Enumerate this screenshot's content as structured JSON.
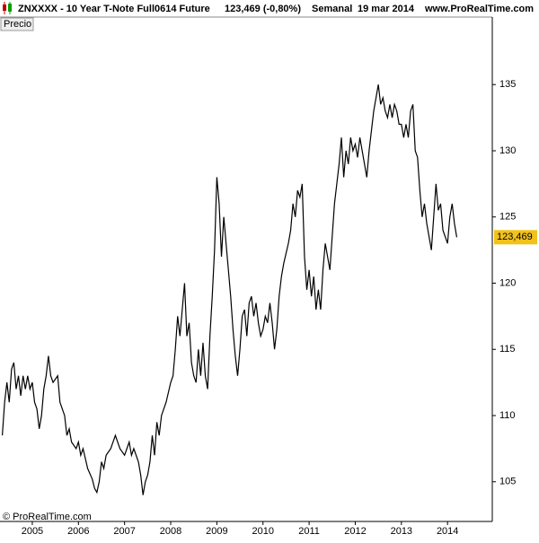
{
  "chart_data": {
    "type": "line",
    "title": "ZNXXXX - 10 Year T-Note Full0614 Future",
    "quote": "123,469 (-0,80%)",
    "period": "Semanal",
    "date": "19 mar 2014",
    "source": "www.ProRealTime.com",
    "panel_label": "Precio",
    "footer": "© ProRealTime.com",
    "x": [
      2004.35,
      2004.4,
      2004.45,
      2004.5,
      2004.55,
      2004.6,
      2004.65,
      2004.7,
      2004.75,
      2004.8,
      2004.85,
      2004.9,
      2004.95,
      2005.0,
      2005.05,
      2005.1,
      2005.15,
      2005.2,
      2005.25,
      2005.3,
      2005.35,
      2005.4,
      2005.45,
      2005.55,
      2005.6,
      2005.7,
      2005.75,
      2005.8,
      2005.85,
      2005.95,
      2006.0,
      2006.05,
      2006.1,
      2006.2,
      2006.3,
      2006.35,
      2006.4,
      2006.45,
      2006.5,
      2006.55,
      2006.6,
      2006.7,
      2006.8,
      2006.9,
      2007.0,
      2007.05,
      2007.1,
      2007.15,
      2007.2,
      2007.3,
      2007.35,
      2007.4,
      2007.45,
      2007.5,
      2007.55,
      2007.6,
      2007.65,
      2007.7,
      2007.75,
      2007.8,
      2007.9,
      2008.0,
      2008.05,
      2008.1,
      2008.15,
      2008.2,
      2008.25,
      2008.3,
      2008.35,
      2008.4,
      2008.45,
      2008.5,
      2008.55,
      2008.6,
      2008.65,
      2008.7,
      2008.75,
      2008.8,
      2008.85,
      2008.9,
      2008.95,
      2009.0,
      2009.05,
      2009.1,
      2009.15,
      2009.2,
      2009.25,
      2009.3,
      2009.35,
      2009.4,
      2009.45,
      2009.5,
      2009.55,
      2009.6,
      2009.65,
      2009.7,
      2009.75,
      2009.8,
      2009.85,
      2009.9,
      2009.95,
      2010.0,
      2010.05,
      2010.1,
      2010.15,
      2010.2,
      2010.25,
      2010.3,
      2010.35,
      2010.4,
      2010.45,
      2010.55,
      2010.6,
      2010.65,
      2010.7,
      2010.75,
      2010.8,
      2010.85,
      2010.9,
      2010.95,
      2011.0,
      2011.05,
      2011.1,
      2011.15,
      2011.2,
      2011.25,
      2011.3,
      2011.35,
      2011.4,
      2011.45,
      2011.5,
      2011.55,
      2011.65,
      2011.7,
      2011.75,
      2011.8,
      2011.85,
      2011.9,
      2011.95,
      2012.0,
      2012.05,
      2012.1,
      2012.2,
      2012.25,
      2012.3,
      2012.35,
      2012.4,
      2012.45,
      2012.5,
      2012.55,
      2012.6,
      2012.65,
      2012.7,
      2012.75,
      2012.8,
      2012.85,
      2012.9,
      2012.95,
      2013.0,
      2013.05,
      2013.1,
      2013.15,
      2013.2,
      2013.25,
      2013.3,
      2013.35,
      2013.4,
      2013.45,
      2013.5,
      2013.55,
      2013.6,
      2013.65,
      2013.7,
      2013.75,
      2013.8,
      2013.85,
      2013.9,
      2013.95,
      2014.0,
      2014.05,
      2014.1,
      2014.15,
      2014.2
    ],
    "series": [
      {
        "color": "#000000",
        "values": [
          108.5,
          111,
          112.5,
          111,
          113.5,
          114,
          112,
          113,
          111.5,
          113,
          112,
          113,
          112,
          112.5,
          111,
          110.5,
          109,
          110,
          112,
          113,
          114.5,
          113,
          112.5,
          113,
          111,
          110,
          108.5,
          109,
          108,
          107.5,
          108,
          107,
          107.5,
          106,
          105.2,
          104.5,
          104.2,
          105,
          106.5,
          106,
          107,
          107.5,
          108.5,
          107.5,
          107,
          107.5,
          108,
          107,
          107.5,
          106.5,
          105.5,
          104,
          105,
          105.5,
          106.5,
          108.5,
          107,
          109.5,
          108.5,
          110,
          111,
          112.5,
          113,
          115,
          117.5,
          116,
          118,
          120,
          116,
          117,
          114,
          113,
          112.5,
          115,
          113,
          115.5,
          113,
          112,
          116,
          119,
          122.5,
          128,
          126,
          122,
          125,
          123,
          121,
          119,
          116.5,
          114.5,
          113,
          115,
          117.5,
          118,
          116,
          118.5,
          119,
          117.5,
          118.5,
          117,
          116,
          116.5,
          117.5,
          117,
          118.5,
          117,
          115,
          116.5,
          119,
          120.5,
          121.5,
          123,
          124,
          126,
          125,
          127,
          126.5,
          127.5,
          122,
          119.5,
          121,
          119,
          120.5,
          118,
          119.5,
          118,
          121,
          123,
          122,
          121,
          123.5,
          126,
          129,
          131,
          128,
          130,
          129,
          131,
          130,
          130.5,
          129.5,
          131,
          129,
          128,
          130,
          131.5,
          133,
          134,
          135,
          133.5,
          134,
          133,
          132.5,
          133.5,
          132.5,
          133.5,
          133,
          132,
          132,
          131,
          132,
          131,
          133,
          133.5,
          130,
          129.5,
          127,
          125,
          126,
          124.5,
          123.5,
          122.5,
          125,
          127.5,
          125.5,
          126,
          124,
          123.5,
          123,
          125,
          126,
          124.5,
          123.469
        ]
      }
    ],
    "last_value": {
      "value": 123.469,
      "label": "123,469"
    },
    "last_value_color": "#f2c21b",
    "xlim": [
      2004.3,
      2014.97
    ],
    "xticks": [
      2005,
      2006,
      2007,
      2008,
      2009,
      2010,
      2011,
      2012,
      2013,
      2014
    ],
    "ylim": [
      102.0,
      140.1
    ],
    "yticks": [
      105,
      110,
      115,
      120,
      125,
      130,
      135
    ],
    "grid": false
  }
}
